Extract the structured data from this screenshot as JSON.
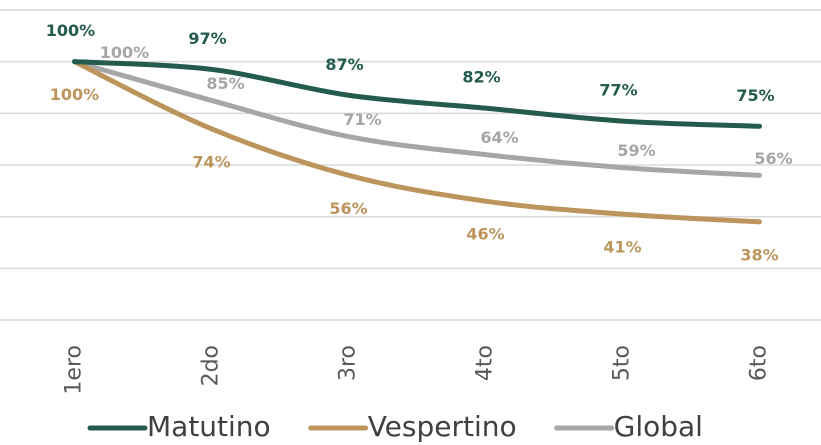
{
  "chart_data": {
    "type": "line",
    "categories": [
      "1ero",
      "2do",
      "3ro",
      "4to",
      "5to",
      "6to"
    ],
    "series": [
      {
        "name": "Matutino",
        "color": "#235b4e",
        "values": [
          100,
          97,
          87,
          82,
          77,
          75
        ],
        "value_labels": [
          "100%",
          "97%",
          "87%",
          "82%",
          "77%",
          "75%"
        ]
      },
      {
        "name": "Vespertino",
        "color": "#bc955c",
        "values": [
          100,
          74,
          56,
          46,
          41,
          38
        ],
        "value_labels": [
          "100%",
          "74%",
          "56%",
          "46%",
          "41%",
          "38%"
        ]
      },
      {
        "name": "Global",
        "color": "#a6a6a6",
        "values": [
          100,
          85,
          71,
          64,
          59,
          56
        ],
        "value_labels": [
          "100%",
          "85%",
          "71%",
          "64%",
          "59%",
          "56%"
        ]
      }
    ],
    "ylim": [
      0,
      120
    ],
    "yticks": [
      0,
      20,
      40,
      60,
      80,
      100,
      120
    ],
    "grid": true,
    "legend": "bottom"
  }
}
